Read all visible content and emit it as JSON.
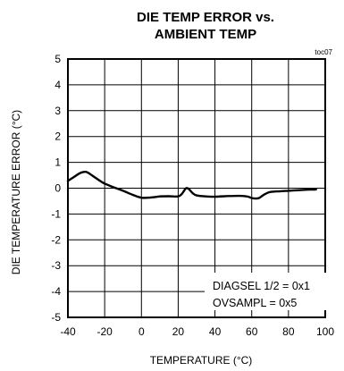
{
  "chart_data": {
    "type": "line",
    "title_lines": [
      "DIE TEMP ERROR vs.",
      "AMBIENT TEMP"
    ],
    "figure_id": "toc07",
    "xlabel": "TEMPERATURE (°C)",
    "ylabel": "DIE TEMPERATURE ERROR (°C)",
    "xlim": [
      -40,
      100
    ],
    "ylim": [
      -5,
      5
    ],
    "x_ticks": [
      -40,
      -20,
      0,
      20,
      40,
      60,
      80,
      100
    ],
    "y_ticks": [
      5,
      4,
      3,
      2,
      1,
      0,
      -1,
      -2,
      -3,
      -4,
      -5
    ],
    "x_tick_labels": [
      "-40",
      "-20",
      "0",
      "20",
      "40",
      "60",
      "80",
      "100"
    ],
    "y_tick_labels": [
      "5",
      "4",
      "3",
      "2",
      "1",
      "0",
      "-1",
      "-2",
      "-3",
      "-4",
      "-5"
    ],
    "grid": true,
    "annotations": [
      "DIAGSEL 1/2 = 0x1",
      "OVSAMPL = 0x5"
    ],
    "annotation_placement": "bottom-right",
    "series": [
      {
        "color": "#000000",
        "x": [
          -40,
          -37,
          -34,
          -32,
          -30,
          -28,
          -25,
          -22,
          -20,
          -15,
          -10,
          -5,
          0,
          5,
          10,
          15,
          20,
          22,
          24,
          25,
          26,
          28,
          30,
          35,
          40,
          45,
          50,
          55,
          58,
          60,
          62,
          64,
          66,
          68,
          70,
          75,
          80,
          85,
          90,
          95
        ],
        "y": [
          0.28,
          0.42,
          0.56,
          0.62,
          0.63,
          0.55,
          0.4,
          0.26,
          0.18,
          0.03,
          -0.1,
          -0.25,
          -0.37,
          -0.36,
          -0.32,
          -0.31,
          -0.32,
          -0.22,
          -0.02,
          0.0,
          -0.05,
          -0.2,
          -0.28,
          -0.32,
          -0.33,
          -0.31,
          -0.3,
          -0.3,
          -0.33,
          -0.38,
          -0.4,
          -0.38,
          -0.28,
          -0.2,
          -0.15,
          -0.12,
          -0.1,
          -0.08,
          -0.06,
          -0.05
        ]
      }
    ]
  }
}
